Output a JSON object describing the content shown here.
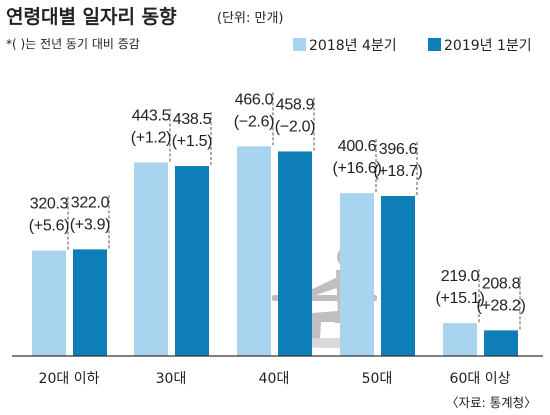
{
  "chart_data": {
    "type": "bar",
    "title": "연령대별 일자리 동향",
    "unit": "(단위: 만개)",
    "note": "*( )는 전년 동기 대비 증감",
    "categories": [
      "20대 이하",
      "30대",
      "40대",
      "50대",
      "60대 이상"
    ],
    "series": [
      {
        "name": "2018년 4분기",
        "color": "#a9d4ef",
        "values": [
          320.3,
          443.5,
          466.0,
          400.6,
          219.0
        ],
        "changes": [
          "(+5.6)",
          "(+1.2)",
          "(−2.6)",
          "(+16.6)",
          "(+15.1)"
        ]
      },
      {
        "name": "2019년 1분기",
        "color": "#0d7eb8",
        "values": [
          322.0,
          438.5,
          458.9,
          396.6,
          208.8
        ],
        "changes": [
          "(+3.9)",
          "(+1.5)",
          "(−2.0)",
          "(+18.7)",
          "(+28.2)"
        ]
      }
    ],
    "source": "〈자료: 통계청〉",
    "grid": false,
    "legend_position": "top-right"
  }
}
